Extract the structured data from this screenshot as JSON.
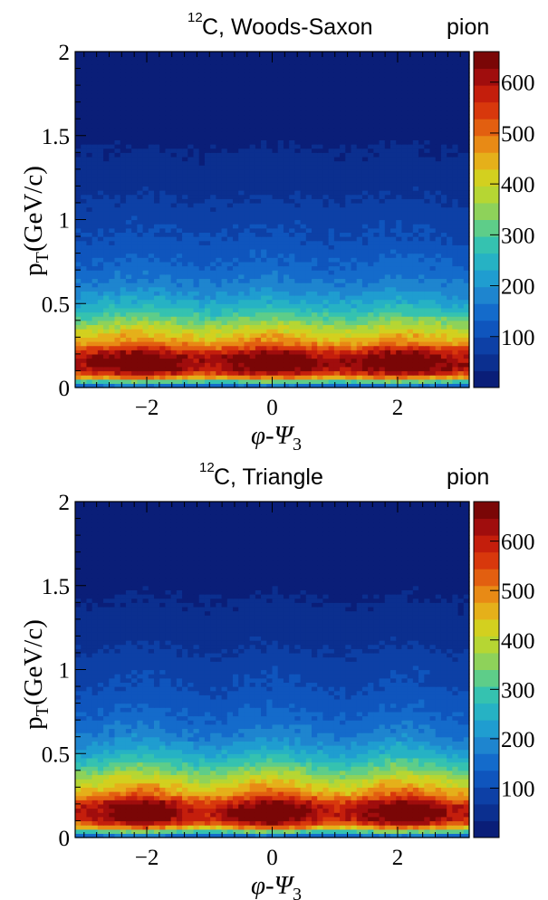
{
  "chart_data": [
    {
      "type": "heatmap",
      "title": {
        "superscript": "12",
        "main": "C, Woods-Saxon",
        "right": "pion"
      },
      "xlabel": {
        "base": "φ-Ψ",
        "sub": "3"
      },
      "ylabel": {
        "base": "p",
        "sub": "T",
        "rest": "(GeV/c)"
      },
      "xlim": [
        -3.1416,
        3.1416
      ],
      "ylim": [
        0,
        2
      ],
      "xticks": [
        -2,
        0,
        2
      ],
      "xtick_labels": [
        "−2",
        "0",
        "2"
      ],
      "yticks": [
        0,
        0.5,
        1,
        1.5,
        2
      ],
      "ytick_labels": [
        "0",
        "0.5",
        "1",
        "1.5",
        "2"
      ],
      "zlim": [
        0,
        660
      ],
      "zticks": [
        100,
        200,
        300,
        400,
        500,
        600
      ],
      "ztick_labels": [
        "100",
        "200",
        "300",
        "400",
        "500",
        "600"
      ],
      "bins": {
        "nx": 70,
        "ny": 80
      },
      "profile": {
        "pt": [
          0.0,
          0.025,
          0.05,
          0.075,
          0.1,
          0.125,
          0.15,
          0.175,
          0.2,
          0.225,
          0.25,
          0.3,
          0.35,
          0.4,
          0.45,
          0.5,
          0.6,
          0.7,
          0.8,
          0.9,
          1.0,
          1.1,
          1.2,
          1.3,
          1.4,
          1.5,
          1.6,
          1.8,
          2.0
        ],
        "counts": [
          120,
          200,
          420,
          530,
          610,
          640,
          650,
          640,
          610,
          570,
          500,
          440,
          390,
          330,
          280,
          240,
          180,
          145,
          120,
          100,
          88,
          70,
          55,
          45,
          35,
          25,
          16,
          8,
          4
        ],
        "modulation": 0.05
      }
    },
    {
      "type": "heatmap",
      "title": {
        "superscript": "12",
        "main": "C, Triangle",
        "right": "pion"
      },
      "xlabel": {
        "base": "φ-Ψ",
        "sub": "3"
      },
      "ylabel": {
        "base": "p",
        "sub": "T",
        "rest": "(GeV/c)"
      },
      "xlim": [
        -3.1416,
        3.1416
      ],
      "ylim": [
        0,
        2
      ],
      "xticks": [
        -2,
        0,
        2
      ],
      "xtick_labels": [
        "−2",
        "0",
        "2"
      ],
      "yticks": [
        0,
        0.5,
        1,
        1.5,
        2
      ],
      "ytick_labels": [
        "0",
        "0.5",
        "1",
        "1.5",
        "2"
      ],
      "zlim": [
        0,
        680
      ],
      "zticks": [
        100,
        200,
        300,
        400,
        500,
        600
      ],
      "ztick_labels": [
        "100",
        "200",
        "300",
        "400",
        "500",
        "600"
      ],
      "bins": {
        "nx": 70,
        "ny": 80
      },
      "profile": {
        "pt": [
          0.0,
          0.025,
          0.05,
          0.075,
          0.1,
          0.125,
          0.15,
          0.175,
          0.2,
          0.225,
          0.25,
          0.3,
          0.35,
          0.4,
          0.45,
          0.5,
          0.6,
          0.7,
          0.8,
          0.9,
          1.0,
          1.1,
          1.2,
          1.3,
          1.4,
          1.5,
          1.6,
          1.8,
          2.0
        ],
        "counts": [
          120,
          210,
          430,
          540,
          620,
          650,
          660,
          650,
          620,
          580,
          510,
          450,
          400,
          340,
          290,
          245,
          185,
          148,
          122,
          102,
          90,
          72,
          56,
          46,
          36,
          26,
          17,
          9,
          4
        ],
        "modulation": 0.08
      }
    }
  ],
  "palette": [
    "#0a1e78",
    "#0b2f8f",
    "#0d40a6",
    "#0f55bd",
    "#146bcb",
    "#1e85cf",
    "#1f9dd0",
    "#26b2c4",
    "#35c2b0",
    "#5ecd89",
    "#8ed25a",
    "#b6d633",
    "#d3d01f",
    "#e5b01a",
    "#e88a15",
    "#e25f10",
    "#d8380c",
    "#c41e0c",
    "#a00d0d",
    "#7a0606"
  ]
}
